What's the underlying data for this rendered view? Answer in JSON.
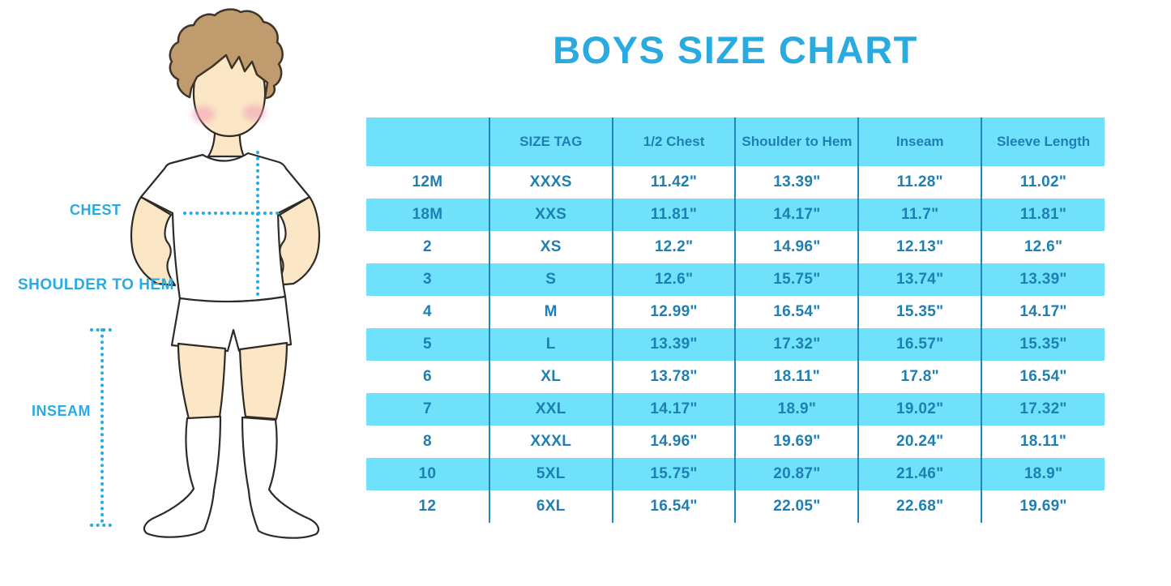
{
  "title": "BOYS SIZE CHART",
  "figure": {
    "labels": {
      "chest": "CHEST",
      "shoulder_to_hem": "SHOULDER TO HEM",
      "inseam": "INSEAM"
    }
  },
  "colors": {
    "accent": "#29abe2",
    "row_fill": "#70e1fb",
    "table_text": "#1e7fb2",
    "table_line": "#1f86b9",
    "skin": "#fbe7c5",
    "hair": "#c09b6e",
    "cheek": "#f2a0b5",
    "outline": "#2e2a26"
  },
  "chart_data": {
    "type": "table",
    "title": "BOYS SIZE CHART",
    "columns": [
      "",
      "SIZE TAG",
      "1/2 Chest",
      "Shoulder to Hem",
      "Inseam",
      "Sleeve Length"
    ],
    "rows": [
      [
        "12M",
        "XXXS",
        "11.42\"",
        "13.39\"",
        "11.28\"",
        "11.02\""
      ],
      [
        "18M",
        "XXS",
        "11.81\"",
        "14.17\"",
        "11.7\"",
        "11.81\""
      ],
      [
        "2",
        "XS",
        "12.2\"",
        "14.96\"",
        "12.13\"",
        "12.6\""
      ],
      [
        "3",
        "S",
        "12.6\"",
        "15.75\"",
        "13.74\"",
        "13.39\""
      ],
      [
        "4",
        "M",
        "12.99\"",
        "16.54\"",
        "15.35\"",
        "14.17\""
      ],
      [
        "5",
        "L",
        "13.39\"",
        "17.32\"",
        "16.57\"",
        "15.35\""
      ],
      [
        "6",
        "XL",
        "13.78\"",
        "18.11\"",
        "17.8\"",
        "16.54\""
      ],
      [
        "7",
        "XXL",
        "14.17\"",
        "18.9\"",
        "19.02\"",
        "17.32\""
      ],
      [
        "8",
        "XXXL",
        "14.96\"",
        "19.69\"",
        "20.24\"",
        "18.11\""
      ],
      [
        "10",
        "5XL",
        "15.75\"",
        "20.87\"",
        "21.46\"",
        "18.9\""
      ],
      [
        "12",
        "6XL",
        "16.54\"",
        "22.05\"",
        "22.68\"",
        "19.69\""
      ]
    ]
  }
}
